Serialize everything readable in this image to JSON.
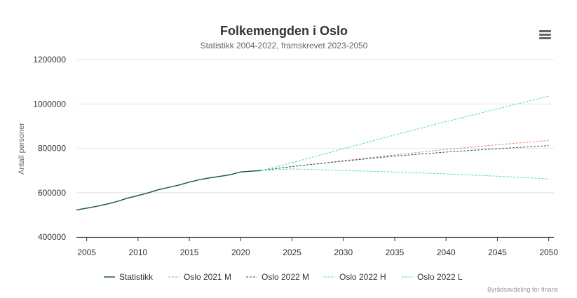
{
  "chart_data": {
    "type": "line",
    "title": "Folkemengden i Oslo",
    "subtitle": "Statistikk 2004-2022, framskrevet 2023-2050",
    "ylabel": "Antall personer",
    "xlabel": "",
    "xlim": [
      2004,
      2050.5
    ],
    "ylim": [
      400000,
      1200000
    ],
    "x_ticks": [
      2005,
      2010,
      2015,
      2020,
      2025,
      2030,
      2035,
      2040,
      2045,
      2050
    ],
    "y_ticks": [
      400000,
      600000,
      800000,
      1000000,
      1200000
    ],
    "grid": "horizontal",
    "legend_position": "bottom",
    "series": [
      {
        "name": "Statistikk",
        "color": "#1f5c4a",
        "style": "solid",
        "x": [
          2004,
          2005,
          2006,
          2007,
          2008,
          2009,
          2010,
          2011,
          2012,
          2013,
          2014,
          2015,
          2016,
          2017,
          2018,
          2019,
          2020,
          2021,
          2022
        ],
        "values": [
          521886,
          529846,
          538411,
          548617,
          560484,
          575475,
          586860,
          599230,
          613285,
          623966,
          634463,
          647676,
          658390,
          666759,
          673469,
          681067,
          693494,
          697010,
          699827
        ]
      },
      {
        "name": "Oslo 2021 M",
        "color": "#f08070",
        "style": "dashed",
        "x": [
          2022,
          2025,
          2030,
          2035,
          2040,
          2045,
          2050
        ],
        "values": [
          700000,
          717000,
          744000,
          770000,
          795000,
          816000,
          835000
        ]
      },
      {
        "name": "Oslo 2022 M",
        "color": "#1f5c4a",
        "style": "dashed",
        "x": [
          2022,
          2025,
          2030,
          2035,
          2040,
          2045,
          2050
        ],
        "values": [
          699827,
          718000,
          742000,
          765000,
          783000,
          798000,
          812000
        ]
      },
      {
        "name": "Oslo 2022 H",
        "color": "#40e0b0",
        "style": "dashed",
        "x": [
          2022,
          2025,
          2030,
          2035,
          2040,
          2045,
          2050
        ],
        "values": [
          699827,
          735000,
          798000,
          860000,
          920000,
          978000,
          1035000
        ]
      },
      {
        "name": "Oslo 2022 L",
        "color": "#40e0b0",
        "style": "dashed",
        "x": [
          2022,
          2025,
          2030,
          2035,
          2040,
          2045,
          2050
        ],
        "values": [
          699827,
          707000,
          700000,
          693000,
          685000,
          674000,
          662000
        ]
      }
    ]
  },
  "menu": {
    "icon": "hamburger-menu-icon"
  },
  "credits": "Byrådsavdeling for finans"
}
